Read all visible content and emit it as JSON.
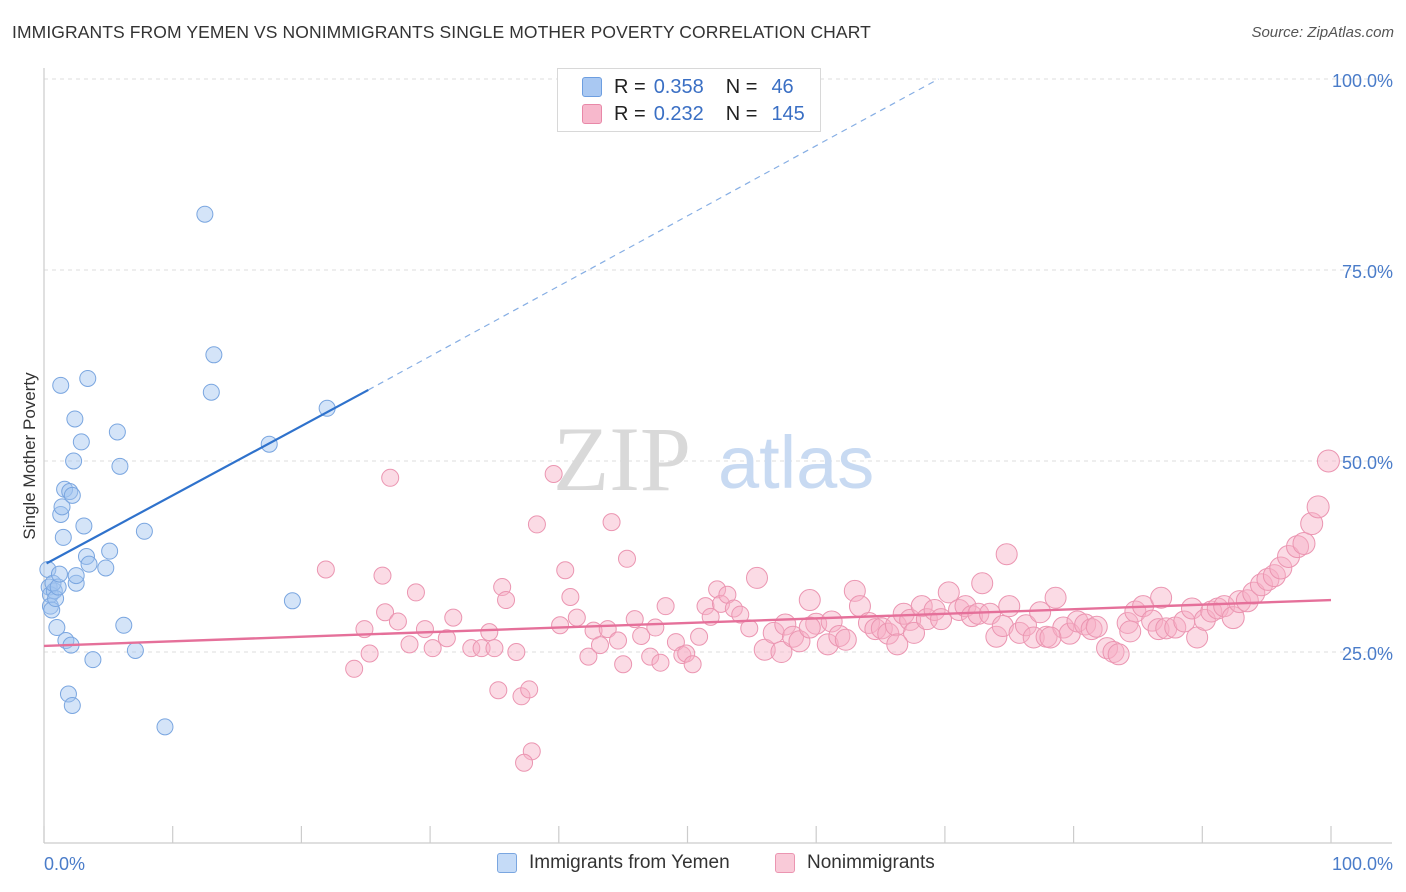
{
  "header": {
    "title": "IMMIGRANTS FROM YEMEN VS NONIMMIGRANTS SINGLE MOTHER POVERTY CORRELATION CHART",
    "source": "Source: ZipAtlas.com"
  },
  "watermark": {
    "zip": "ZIP",
    "atlas": "atlas"
  },
  "legend": {
    "rows": [
      {
        "r_label": "R =",
        "r_value": "0.358",
        "n_label": "N =",
        "n_value": "46",
        "color": "#a9c8f2",
        "border": "#6d9ee0"
      },
      {
        "r_label": "R =",
        "r_value": "0.232",
        "n_label": "N =",
        "n_value": "145",
        "color": "#f7b8cc",
        "border": "#e888a8"
      }
    ]
  },
  "bottom_legend": {
    "items": [
      {
        "label": "Immigrants from Yemen",
        "color": "#c5dbf7",
        "border": "#7aa6e0"
      },
      {
        "label": "Nonimmigrants",
        "color": "#f9cad8",
        "border": "#eb95b1"
      }
    ]
  },
  "chart_data": {
    "type": "scatter",
    "xlabel": "",
    "ylabel": "Single Mother Poverty",
    "xlim": [
      0,
      100
    ],
    "ylim": [
      0,
      100
    ],
    "x_ticks": [
      {
        "value": 0,
        "label": "0.0%"
      },
      {
        "value": 100,
        "label": "100.0%"
      }
    ],
    "y_ticks": [
      {
        "value": 25,
        "label": "25.0%"
      },
      {
        "value": 50,
        "label": "50.0%"
      },
      {
        "value": 75,
        "label": "75.0%"
      },
      {
        "value": 100,
        "label": "100.0%"
      }
    ],
    "grid": true,
    "colors": {
      "blue": "#2f72cc",
      "pink": "#e5709a",
      "tick": "#4a7cc9"
    },
    "series": [
      {
        "name": "Immigrants from Yemen",
        "color": "#7aa6e0",
        "fill": "rgba(160,195,240,0.45)",
        "trend": {
          "x0": 0.2,
          "y0": 36.6,
          "x1": 25.2,
          "y1": 59.3,
          "dash_x1": 69.5,
          "dash_y1": 100
        },
        "points": [
          [
            0.3,
            35.8
          ],
          [
            0.4,
            33.5
          ],
          [
            0.5,
            32.5
          ],
          [
            0.5,
            31.0
          ],
          [
            0.6,
            30.5
          ],
          [
            0.8,
            33.0
          ],
          [
            0.7,
            34.0
          ],
          [
            0.9,
            32.0
          ],
          [
            1.0,
            28.2
          ],
          [
            1.1,
            33.5
          ],
          [
            1.2,
            35.2
          ],
          [
            1.3,
            43.0
          ],
          [
            1.4,
            44.0
          ],
          [
            1.3,
            59.9
          ],
          [
            1.5,
            40.0
          ],
          [
            1.6,
            46.3
          ],
          [
            1.7,
            26.5
          ],
          [
            1.9,
            19.5
          ],
          [
            2.0,
            46.0
          ],
          [
            2.1,
            25.9
          ],
          [
            2.2,
            18.0
          ],
          [
            2.3,
            50.0
          ],
          [
            2.4,
            55.5
          ],
          [
            2.2,
            45.5
          ],
          [
            2.5,
            34.0
          ],
          [
            2.5,
            35.0
          ],
          [
            2.9,
            52.5
          ],
          [
            3.1,
            41.5
          ],
          [
            3.3,
            37.5
          ],
          [
            3.4,
            60.8
          ],
          [
            3.8,
            24.0
          ],
          [
            3.5,
            36.5
          ],
          [
            4.8,
            36.0
          ],
          [
            5.1,
            38.2
          ],
          [
            5.7,
            53.8
          ],
          [
            5.9,
            49.3
          ],
          [
            6.2,
            28.5
          ],
          [
            7.1,
            25.2
          ],
          [
            7.8,
            40.8
          ],
          [
            9.4,
            15.2
          ],
          [
            12.5,
            82.3
          ],
          [
            13.0,
            59.0
          ],
          [
            13.2,
            63.9
          ],
          [
            17.5,
            52.2
          ],
          [
            19.3,
            31.7
          ],
          [
            22.0,
            56.9
          ]
        ]
      },
      {
        "name": "Nonimmigrants",
        "color": "#eb95b1",
        "fill": "rgba(247,176,198,0.45)",
        "trend": {
          "x0": 0,
          "y0": 25.8,
          "x1": 100,
          "y1": 31.8
        },
        "points": [
          [
            21.9,
            35.8
          ],
          [
            24.1,
            22.8
          ],
          [
            24.9,
            28.0
          ],
          [
            25.3,
            24.8
          ],
          [
            26.3,
            35.0
          ],
          [
            26.5,
            30.2
          ],
          [
            26.9,
            47.8
          ],
          [
            27.5,
            29.0
          ],
          [
            28.4,
            26.0
          ],
          [
            28.9,
            32.8
          ],
          [
            29.6,
            28.0
          ],
          [
            30.2,
            25.5
          ],
          [
            31.3,
            26.8
          ],
          [
            31.8,
            29.5
          ],
          [
            33.2,
            25.5
          ],
          [
            34.0,
            25.5
          ],
          [
            34.6,
            27.6
          ],
          [
            35.0,
            25.5
          ],
          [
            35.3,
            20.0
          ],
          [
            35.6,
            33.5
          ],
          [
            35.9,
            31.8
          ],
          [
            36.7,
            25.0
          ],
          [
            37.1,
            19.2
          ],
          [
            37.7,
            20.1
          ],
          [
            37.9,
            12.0
          ],
          [
            37.3,
            10.5
          ],
          [
            38.3,
            41.7
          ],
          [
            39.6,
            48.3
          ],
          [
            40.1,
            28.5
          ],
          [
            40.5,
            35.7
          ],
          [
            40.9,
            32.2
          ],
          [
            41.4,
            29.5
          ],
          [
            42.3,
            24.4
          ],
          [
            42.7,
            27.8
          ],
          [
            43.2,
            25.9
          ],
          [
            43.8,
            28.0
          ],
          [
            44.1,
            42.0
          ],
          [
            44.6,
            26.5
          ],
          [
            45.0,
            23.4
          ],
          [
            45.3,
            37.2
          ],
          [
            45.9,
            29.3
          ],
          [
            46.4,
            27.1
          ],
          [
            47.1,
            24.4
          ],
          [
            47.5,
            28.2
          ],
          [
            47.9,
            23.6
          ],
          [
            48.3,
            31.0
          ],
          [
            49.1,
            26.3
          ],
          [
            49.6,
            24.6
          ],
          [
            49.9,
            24.8
          ],
          [
            50.4,
            23.4
          ],
          [
            50.9,
            27.0
          ],
          [
            51.4,
            31.0
          ],
          [
            51.8,
            29.6
          ],
          [
            52.3,
            33.2
          ],
          [
            52.6,
            31.3
          ],
          [
            53.1,
            32.5
          ],
          [
            53.6,
            30.7
          ],
          [
            54.1,
            29.9
          ],
          [
            54.8,
            28.1
          ],
          [
            55.4,
            34.7
          ],
          [
            56.0,
            25.3
          ],
          [
            56.7,
            27.5
          ],
          [
            57.3,
            25.0
          ],
          [
            57.6,
            28.6
          ],
          [
            58.2,
            27.0
          ],
          [
            58.7,
            26.4
          ],
          [
            59.5,
            31.8
          ],
          [
            60.0,
            28.7
          ],
          [
            60.9,
            26.0
          ],
          [
            61.2,
            29.0
          ],
          [
            61.8,
            27.1
          ],
          [
            62.3,
            26.6
          ],
          [
            63.0,
            33.0
          ],
          [
            63.4,
            31.0
          ],
          [
            64.1,
            28.8
          ],
          [
            64.6,
            28.0
          ],
          [
            65.1,
            28.1
          ],
          [
            65.6,
            27.4
          ],
          [
            66.2,
            28.5
          ],
          [
            66.8,
            30.0
          ],
          [
            67.3,
            29.2
          ],
          [
            67.6,
            27.5
          ],
          [
            68.2,
            31.0
          ],
          [
            68.6,
            29.3
          ],
          [
            69.2,
            30.5
          ],
          [
            69.7,
            29.3
          ],
          [
            70.3,
            32.8
          ],
          [
            71.1,
            30.5
          ],
          [
            71.6,
            31.0
          ],
          [
            72.1,
            29.7
          ],
          [
            72.6,
            30.0
          ],
          [
            73.5,
            30.0
          ],
          [
            74.0,
            27.0
          ],
          [
            74.5,
            28.4
          ],
          [
            75.0,
            31.0
          ],
          [
            75.8,
            27.5
          ],
          [
            76.3,
            28.5
          ],
          [
            76.9,
            26.9
          ],
          [
            77.4,
            30.2
          ],
          [
            77.9,
            27.0
          ],
          [
            78.6,
            32.1
          ],
          [
            79.2,
            28.2
          ],
          [
            79.7,
            27.4
          ],
          [
            80.3,
            29.0
          ],
          [
            80.9,
            28.6
          ],
          [
            81.4,
            28.0
          ],
          [
            81.8,
            28.3
          ],
          [
            82.6,
            25.5
          ],
          [
            83.1,
            25.0
          ],
          [
            83.5,
            24.7
          ],
          [
            84.2,
            28.8
          ],
          [
            84.8,
            30.3
          ],
          [
            85.4,
            31.0
          ],
          [
            86.1,
            29.1
          ],
          [
            86.6,
            28.0
          ],
          [
            87.2,
            28.1
          ],
          [
            87.9,
            28.2
          ],
          [
            88.6,
            29.0
          ],
          [
            89.2,
            30.7
          ],
          [
            89.6,
            26.9
          ],
          [
            90.2,
            29.2
          ],
          [
            90.7,
            30.3
          ],
          [
            91.2,
            30.7
          ],
          [
            91.7,
            31.0
          ],
          [
            92.4,
            29.5
          ],
          [
            92.9,
            31.6
          ],
          [
            93.5,
            31.7
          ],
          [
            94.0,
            32.7
          ],
          [
            94.6,
            33.8
          ],
          [
            95.1,
            34.5
          ],
          [
            95.6,
            35.0
          ],
          [
            96.1,
            36.0
          ],
          [
            96.7,
            37.5
          ],
          [
            97.4,
            38.8
          ],
          [
            97.9,
            39.2
          ],
          [
            98.5,
            41.8
          ],
          [
            99.0,
            44.0
          ],
          [
            99.8,
            50.0
          ],
          [
            59.5,
            28.2
          ],
          [
            66.3,
            26.0
          ],
          [
            72.9,
            34.0
          ],
          [
            74.8,
            37.8
          ],
          [
            78.2,
            26.9
          ],
          [
            84.4,
            27.7
          ],
          [
            86.8,
            32.1
          ]
        ]
      }
    ]
  }
}
